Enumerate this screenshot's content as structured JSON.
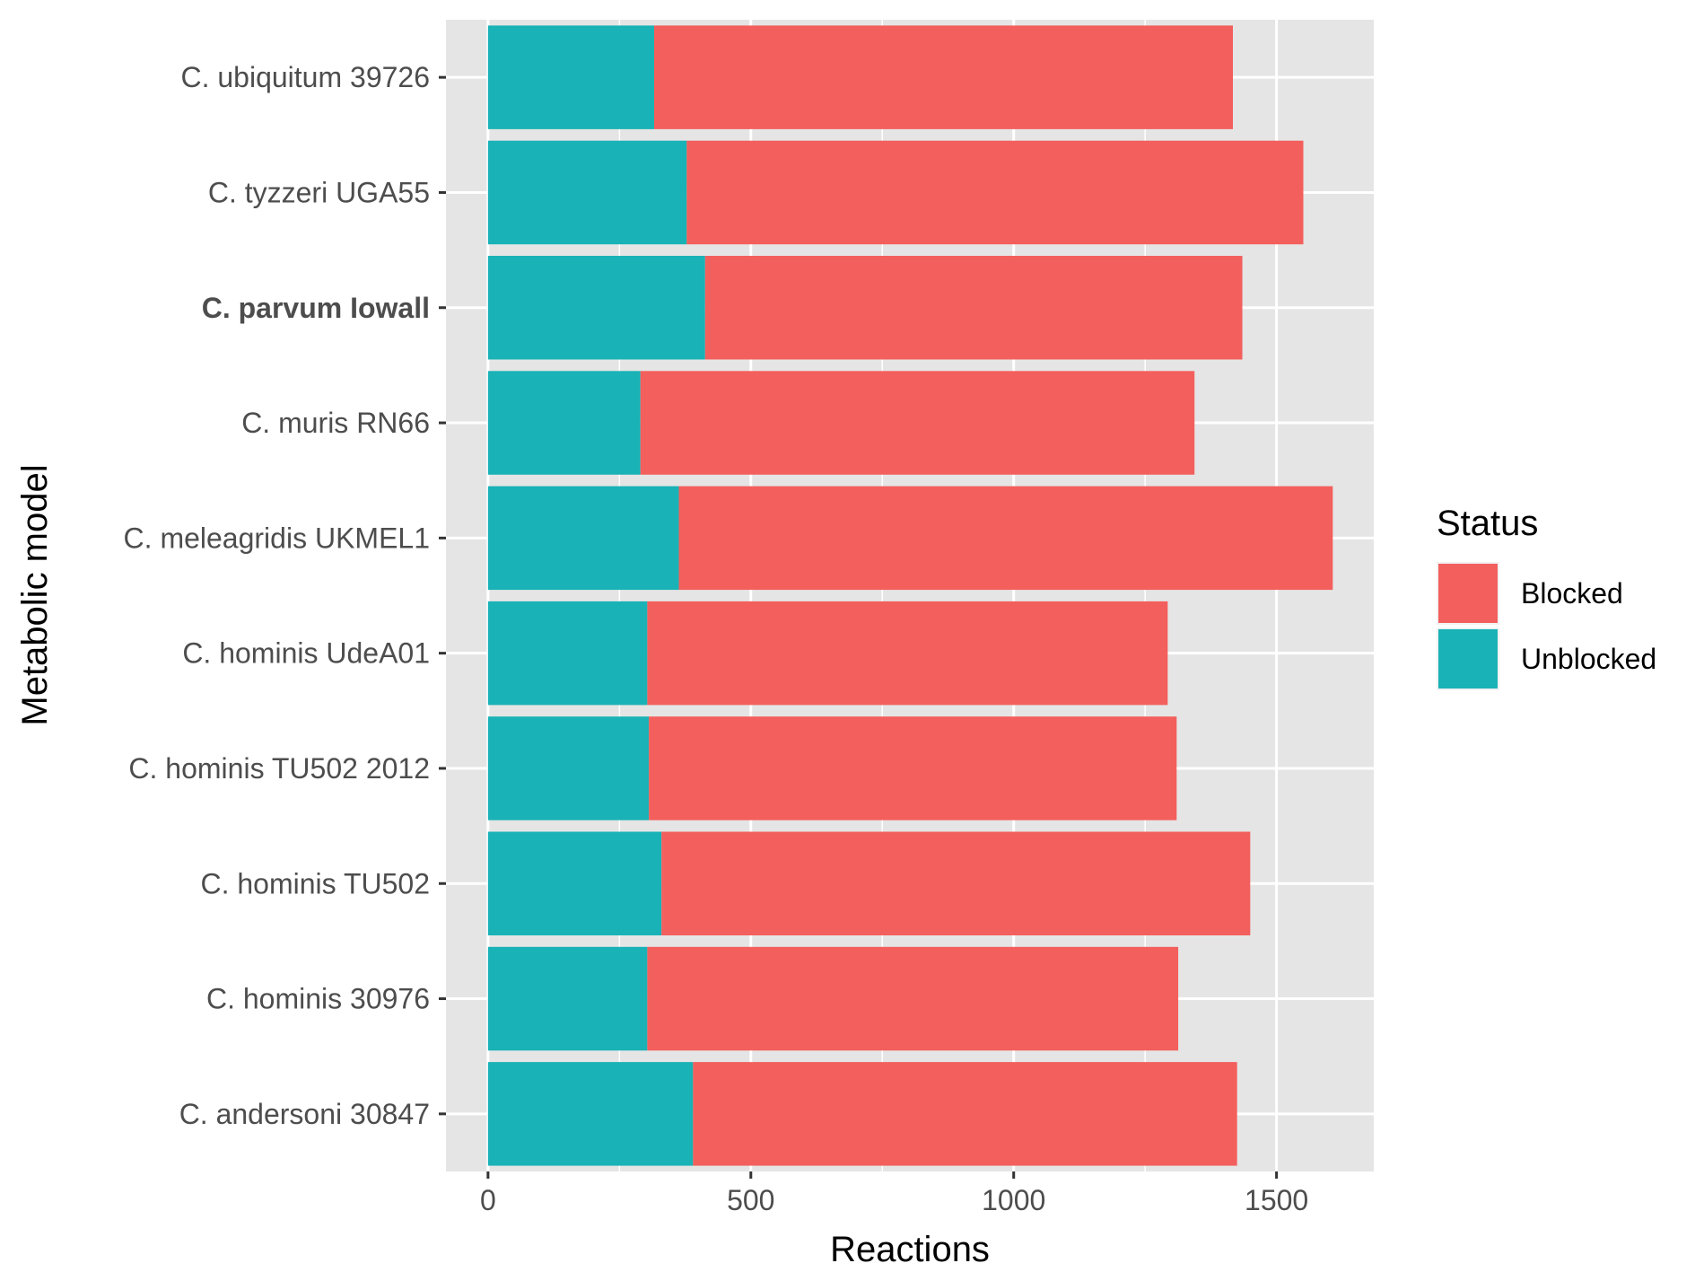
{
  "chart_data": {
    "type": "bar",
    "orientation": "horizontal",
    "stacked": true,
    "title": "",
    "xlabel": "Reactions",
    "ylabel": "Metabolic model",
    "xlim": [
      -80,
      1685
    ],
    "x_ticks": [
      0,
      500,
      1000,
      1500
    ],
    "grid": true,
    "categories": [
      "C. andersoni 30847",
      "C. hominis 30976",
      "C. hominis TU502",
      "C. hominis TU502 2012",
      "C. hominis UdeA01",
      "C. meleagridis UKMEL1",
      "C. muris RN66",
      "C. parvum Iowall",
      "C. tyzzeri UGA55",
      "C. ubiquitum 39726"
    ],
    "bold_category": "C. parvum Iowall",
    "series": [
      {
        "name": "Unblocked",
        "color": "#19b2b6",
        "values": [
          390,
          303,
          330,
          306,
          303,
          363,
          290,
          413,
          378,
          316
        ]
      },
      {
        "name": "Blocked",
        "color": "#f35f5c",
        "values": [
          1035,
          1010,
          1120,
          1004,
          990,
          1244,
          1054,
          1022,
          1173,
          1101
        ]
      }
    ],
    "legend": {
      "title": "Status",
      "position": "right",
      "entries": [
        {
          "label": "Blocked",
          "color": "#f35f5c"
        },
        {
          "label": "Unblocked",
          "color": "#19b2b6"
        }
      ]
    },
    "colors": {
      "panel_background": "#e5e5e5",
      "gridline": "#ffffff"
    }
  }
}
